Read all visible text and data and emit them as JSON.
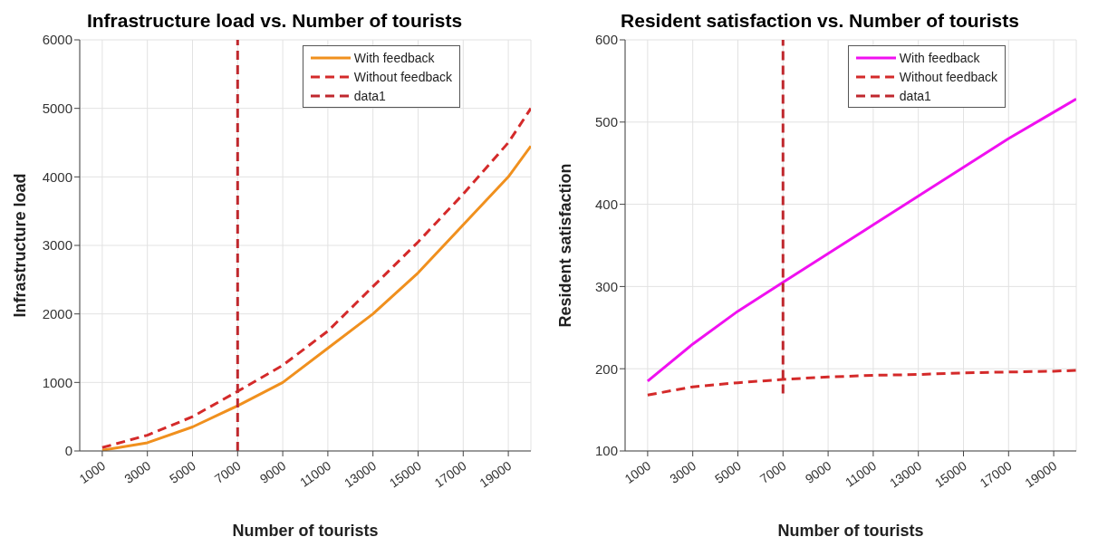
{
  "chart_data": [
    {
      "type": "line",
      "title": "Infrastructure load vs. Number of tourists",
      "xlabel": "Number of tourists",
      "ylabel": "Infrastructure load",
      "xlim": [
        0,
        20000
      ],
      "xticks": [
        1000,
        3000,
        5000,
        7000,
        9000,
        11000,
        13000,
        15000,
        17000,
        19000
      ],
      "ylim": [
        0,
        6000
      ],
      "yticks": [
        0,
        1000,
        2000,
        3000,
        4000,
        5000,
        6000
      ],
      "grid": true,
      "legend": "top right",
      "marker": "none",
      "series": [
        {
          "name": "With feedback",
          "color": "#f0901e",
          "line_style": "solid",
          "x": [
            1000,
            3000,
            5000,
            7000,
            9000,
            11000,
            13000,
            15000,
            17000,
            19000,
            20000
          ],
          "values": [
            10,
            120,
            350,
            660,
            1000,
            1500,
            2000,
            2600,
            3300,
            4000,
            4450
          ]
        },
        {
          "name": "Without feedback",
          "color": "#d42a2a",
          "line_style": "dashed",
          "x": [
            1000,
            3000,
            5000,
            7000,
            9000,
            11000,
            13000,
            15000,
            17000,
            19000,
            20000
          ],
          "values": [
            50,
            230,
            500,
            870,
            1250,
            1750,
            2400,
            3050,
            3750,
            4500,
            5000
          ]
        },
        {
          "name": "data1",
          "color": "#c0282e",
          "line_style": "dashed",
          "x": [
            7000,
            7000
          ],
          "values": [
            0,
            6000
          ]
        }
      ]
    },
    {
      "type": "line",
      "title": "Resident satisfaction vs. Number of tourists",
      "xlabel": "Number of tourists",
      "ylabel": "Resident satisfaction",
      "xlim": [
        0,
        20000
      ],
      "xticks": [
        1000,
        3000,
        5000,
        7000,
        9000,
        11000,
        13000,
        15000,
        17000,
        19000
      ],
      "ylim": [
        100,
        600
      ],
      "yticks": [
        100,
        200,
        300,
        400,
        500,
        600
      ],
      "grid": true,
      "legend": "top right",
      "marker": "none",
      "series": [
        {
          "name": "With feedback",
          "color": "#f010f0",
          "line_style": "solid",
          "x": [
            1000,
            3000,
            5000,
            7000,
            9000,
            11000,
            13000,
            15000,
            17000,
            19000,
            20000
          ],
          "values": [
            185,
            230,
            270,
            305,
            340,
            375,
            410,
            445,
            480,
            512,
            528
          ]
        },
        {
          "name": "Without feedback",
          "color": "#d42a2a",
          "line_style": "dashed",
          "x": [
            1000,
            3000,
            5000,
            7000,
            9000,
            11000,
            13000,
            15000,
            17000,
            19000,
            20000
          ],
          "values": [
            168,
            178,
            183,
            187,
            190,
            192,
            193,
            195,
            196,
            197,
            198
          ]
        },
        {
          "name": "data1",
          "color": "#c0282e",
          "line_style": "dashed",
          "x": [
            7000,
            7000
          ],
          "values": [
            170,
            600
          ]
        }
      ]
    }
  ]
}
